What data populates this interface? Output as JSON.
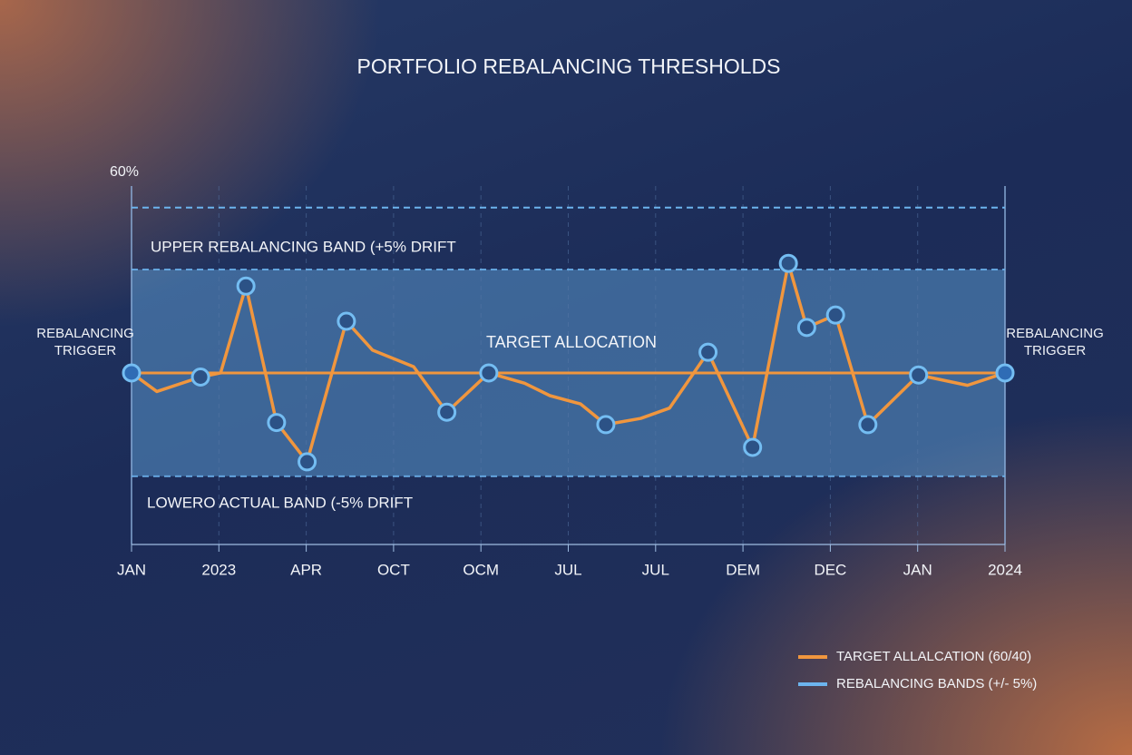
{
  "chart_data": {
    "type": "line",
    "title": "PORTFOLIO REBALANCING THRESHOLDS",
    "annotations": [
      "UPPER REBALANCING BAND (+5% DRIFT",
      "TARGET ALLOCATION",
      "LOWERO ACTUAL BAND (-5% DRIFT",
      "REBALANCING TRIGGER",
      "REBALANCING TRIGGER"
    ],
    "xlim": [
      0,
      10
    ],
    "xticks": [
      {
        "value": 0,
        "label": "JAN"
      },
      {
        "value": 1,
        "label": "2023"
      },
      {
        "value": 2,
        "label": "APR"
      },
      {
        "value": 3,
        "label": "OCT"
      },
      {
        "value": 4,
        "label": "OCM"
      },
      {
        "value": 5,
        "label": "JUL"
      },
      {
        "value": 6,
        "label": "JUL"
      },
      {
        "value": 7,
        "label": "DEM"
      },
      {
        "value": 8,
        "label": "DEC"
      },
      {
        "value": 9,
        "label": "JAN"
      },
      {
        "value": 10,
        "label": "2024"
      }
    ],
    "ylim": [
      42,
      60
    ],
    "yticks": [
      {
        "value": 60,
        "label": "60%"
      }
    ],
    "target": 50.3,
    "upper_limit": 58.3,
    "series": [
      {
        "name": "TARGET ALLALCATION (60/40)",
        "color": "#f0963e",
        "x": [
          0,
          0.29,
          0.79,
          1.02,
          1.31,
          1.66,
          2.01,
          2.46,
          2.76,
          3.23,
          3.61,
          4.09,
          4.5,
          4.79,
          5.14,
          5.43,
          5.83,
          6.16,
          6.6,
          7.11,
          7.52,
          7.73,
          8.06,
          8.43,
          9.01,
          9.57,
          10
        ],
        "values": [
          50.3,
          49.4,
          50.1,
          50.3,
          54.5,
          47.9,
          46.0,
          52.8,
          51.4,
          50.6,
          48.4,
          50.3,
          49.8,
          49.2,
          48.8,
          47.8,
          48.1,
          48.6,
          51.3,
          46.7,
          55.6,
          52.5,
          53.1,
          47.8,
          50.2,
          49.7,
          50.3
        ]
      },
      {
        "name": "REBALANCING BANDS (+/- 5%)",
        "color": "#6cb4ee",
        "values": [
          45.3,
          55.3
        ]
      }
    ],
    "points": {
      "color": "#74bdf2",
      "x": [
        0,
        0.79,
        1.31,
        1.66,
        2.01,
        2.46,
        3.61,
        4.09,
        5.43,
        6.6,
        7.11,
        7.52,
        7.73,
        8.06,
        8.43,
        9.01,
        10
      ],
      "values": [
        50.3,
        50.1,
        54.5,
        47.9,
        46.0,
        52.8,
        48.4,
        50.3,
        47.8,
        51.3,
        46.7,
        55.6,
        52.5,
        53.1,
        47.8,
        50.2,
        50.3
      ]
    }
  }
}
